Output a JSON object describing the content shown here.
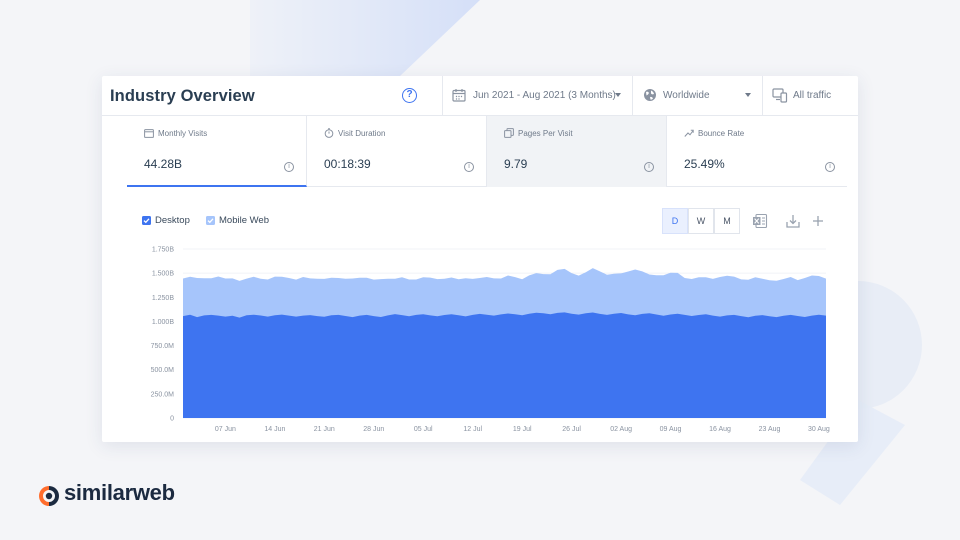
{
  "header": {
    "title": "Industry Overview",
    "help_icon": "question-circle-icon",
    "date_range": "Jun 2021 - Aug 2021 (3 Months)",
    "country": "Worldwide",
    "traffic": "All traffic"
  },
  "metrics": [
    {
      "label": "Monthly Visits",
      "value": "44.28B",
      "icon": "calendar-icon"
    },
    {
      "label": "Visit Duration",
      "value": "00:18:39",
      "icon": "stopwatch-icon"
    },
    {
      "label": "Pages Per Visit",
      "value": "9.79",
      "icon": "pages-icon"
    },
    {
      "label": "Bounce Rate",
      "value": "25.49%",
      "icon": "trend-icon"
    }
  ],
  "legend": {
    "desktop": "Desktop",
    "mobile": "Mobile Web"
  },
  "granularity": [
    "D",
    "W",
    "M"
  ],
  "colors": {
    "accent": "#3e74f0",
    "desktop": "#3e74f0",
    "mobile": "#a6c5fb"
  },
  "chart_data": {
    "type": "area",
    "stacked": true,
    "y_ticks": [
      "1.750B",
      "1.500B",
      "1.250B",
      "1.000B",
      "750.0M",
      "500.0M",
      "250.0M",
      "0"
    ],
    "ylim": [
      0,
      1750000000
    ],
    "x_ticks": [
      "07 Jun",
      "14 Jun",
      "21 Jun",
      "28 Jun",
      "05 Jul",
      "12 Jul",
      "19 Jul",
      "26 Jul",
      "02 Aug",
      "09 Aug",
      "16 Aug",
      "23 Aug",
      "30 Aug"
    ],
    "x_start": "01 Jun",
    "x_end": "31 Aug",
    "series": [
      {
        "name": "Desktop",
        "values": [
          1055,
          1070,
          1045,
          1062,
          1068,
          1060,
          1050,
          1058,
          1040,
          1063,
          1070,
          1061,
          1050,
          1064,
          1071,
          1060,
          1050,
          1060,
          1066,
          1055,
          1048,
          1064,
          1068,
          1056,
          1045,
          1060,
          1068,
          1055,
          1046,
          1062,
          1076,
          1066,
          1054,
          1068,
          1074,
          1062,
          1053,
          1067,
          1075,
          1064,
          1052,
          1068,
          1078,
          1070,
          1060,
          1073,
          1082,
          1075,
          1064,
          1079,
          1090,
          1084,
          1074,
          1088,
          1094,
          1080,
          1071,
          1085,
          1092,
          1078,
          1068,
          1080,
          1087,
          1073,
          1063,
          1078,
          1085,
          1072,
          1058,
          1072,
          1080,
          1068,
          1056,
          1067,
          1074,
          1060,
          1050,
          1062,
          1068,
          1055,
          1044,
          1058,
          1066,
          1054,
          1045,
          1059,
          1068,
          1056,
          1046,
          1060,
          1070,
          1060
        ]
      },
      {
        "name": "Mobile Web",
        "values": [
          390,
          392,
          405,
          385,
          380,
          405,
          395,
          388,
          380,
          380,
          392,
          380,
          384,
          400,
          392,
          390,
          383,
          400,
          380,
          386,
          392,
          389,
          382,
          385,
          400,
          392,
          384,
          378,
          392,
          380,
          366,
          392,
          380,
          366,
          384,
          392,
          385,
          375,
          380,
          372,
          395,
          372,
          372,
          390,
          386,
          372,
          394,
          384,
          372,
          398,
          410,
          406,
          414,
          446,
          450,
          420,
          404,
          424,
          460,
          440,
          415,
          414,
          410,
          444,
          475,
          440,
          401,
          407,
          420,
          432,
          423,
          382,
          383,
          390,
          384,
          380,
          410,
          412,
          396,
          380,
          388,
          400,
          376,
          372,
          377,
          380,
          392,
          372,
          404,
          416,
          400,
          384
        ]
      }
    ]
  }
}
